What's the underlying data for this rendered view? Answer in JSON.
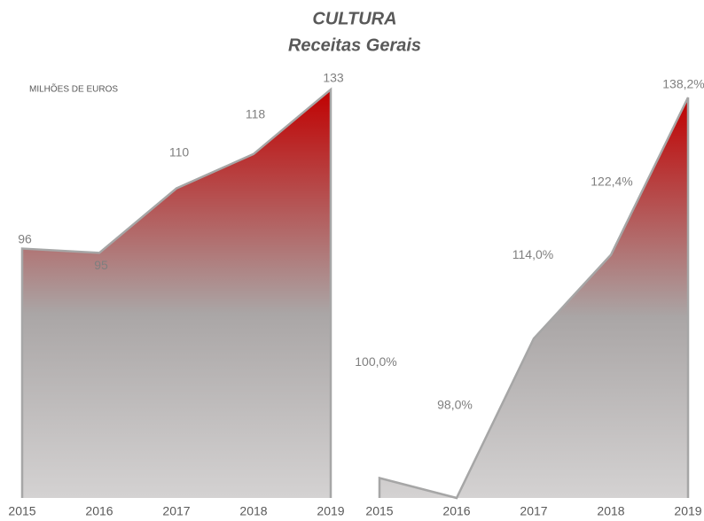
{
  "title": "CULTURA",
  "subtitle": "Receitas Gerais",
  "chart_data": [
    {
      "type": "area",
      "y_axis_label": "MILHÕES DE EUROS",
      "categories": [
        "2015",
        "2016",
        "2017",
        "2018",
        "2019"
      ],
      "values": [
        96,
        95,
        110,
        118,
        133
      ],
      "ylim": [
        38,
        133
      ],
      "color": "#c00000"
    },
    {
      "type": "area",
      "categories": [
        "2015",
        "2016",
        "2017",
        "2018",
        "2019"
      ],
      "values": [
        100.0,
        98.0,
        114.0,
        122.4,
        138.2
      ],
      "value_labels": [
        "100,0%",
        "98,0%",
        "114,0%",
        "122,4%",
        "138,2%"
      ],
      "ylim": [
        98,
        138.2
      ],
      "color": "#c00000"
    }
  ]
}
